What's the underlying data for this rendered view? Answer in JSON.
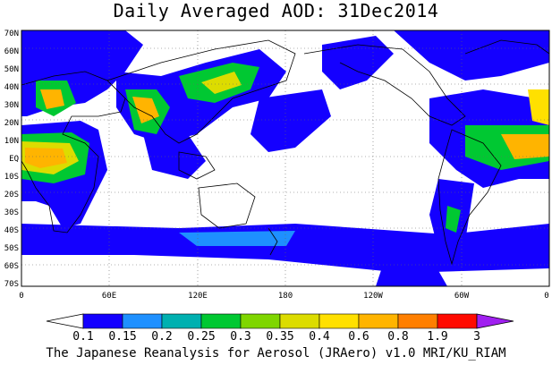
{
  "title": "Daily Averaged AOD: 31Dec2014",
  "footer": "The Japanese Reanalysis for Aerosol (JRAero) v1.0 MRI/KU_RIAM",
  "lat_labels": [
    "70N",
    "60N",
    "50N",
    "40N",
    "30N",
    "20N",
    "10N",
    "EQ",
    "10S",
    "20S",
    "30S",
    "40S",
    "50S",
    "60S",
    "70S"
  ],
  "lon_labels": [
    "0",
    "60E",
    "120E",
    "180",
    "120W",
    "60W",
    "0"
  ],
  "colorbar": {
    "labels": [
      "0.1",
      "0.15",
      "0.2",
      "0.25",
      "0.3",
      "0.35",
      "0.4",
      "0.6",
      "0.8",
      "1.9",
      "3"
    ],
    "colors": [
      "#1400ff",
      "#1e90ff",
      "#00b0b0",
      "#00c832",
      "#7fd600",
      "#dcdc00",
      "#ffe000",
      "#ffb400",
      "#ff7f00",
      "#ff0a00",
      "#a020f0"
    ]
  }
}
